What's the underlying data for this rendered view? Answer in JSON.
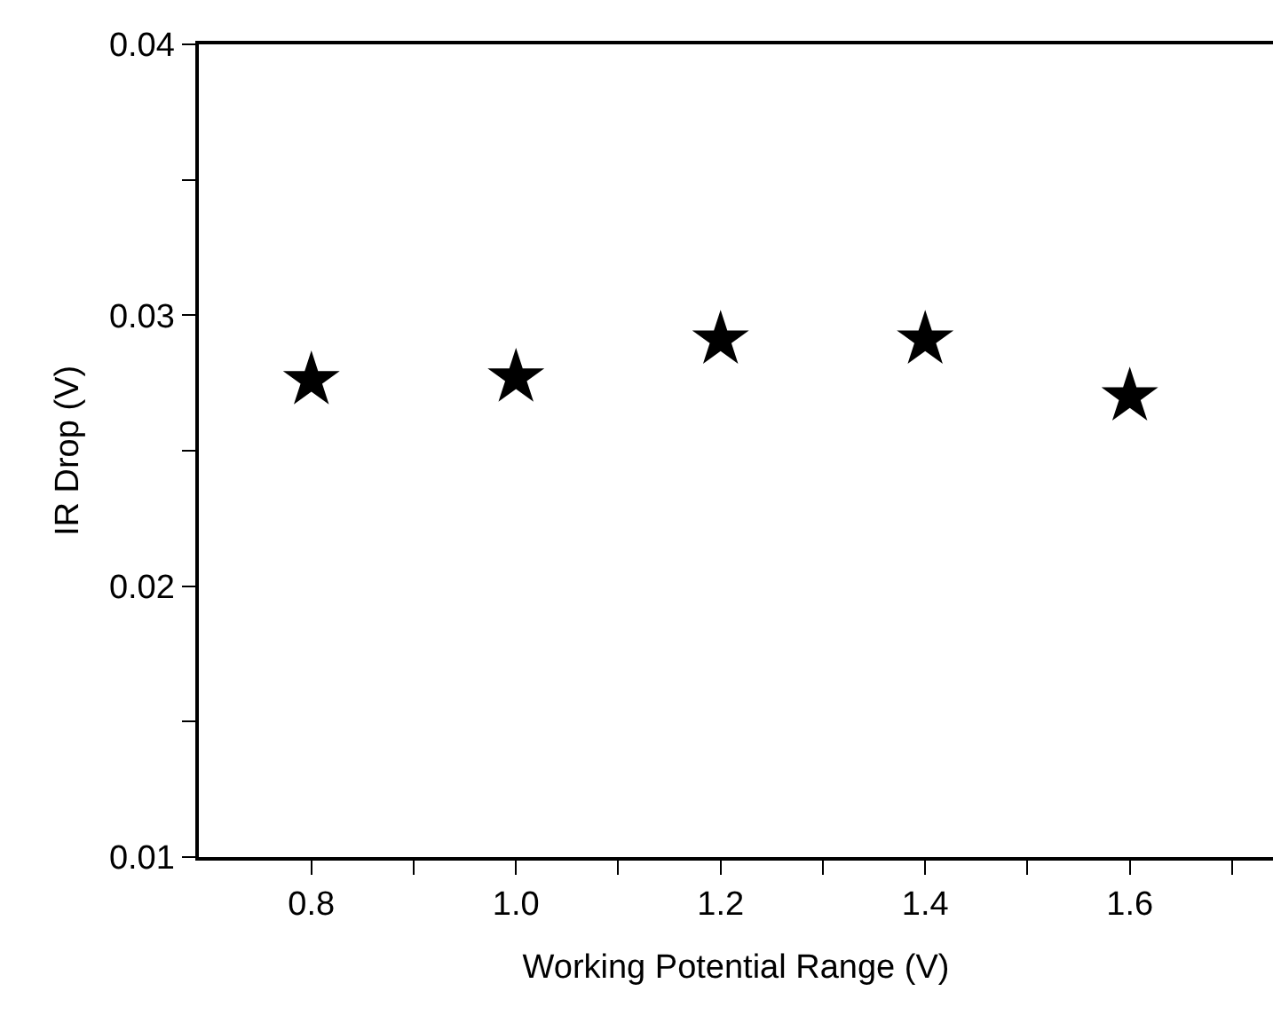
{
  "chart_data": {
    "type": "scatter",
    "xlabel": "Working Potential Range (V)",
    "ylabel": "IR Drop (V)",
    "x": [
      0.8,
      1.0,
      1.2,
      1.4,
      1.6
    ],
    "values": [
      0.0276,
      0.0277,
      0.0291,
      0.0291,
      0.027
    ],
    "color": "#000000",
    "marker": "star",
    "grid": false,
    "xlim": [
      0.69,
      1.74
    ],
    "ylim": [
      0.01,
      0.04
    ],
    "xticks": [
      {
        "value": 0.8,
        "label": "0.8"
      },
      {
        "value": 0.9,
        "label": null
      },
      {
        "value": 1.0,
        "label": "1.0"
      },
      {
        "value": 1.1,
        "label": null
      },
      {
        "value": 1.2,
        "label": "1.2"
      },
      {
        "value": 1.3,
        "label": null
      },
      {
        "value": 1.4,
        "label": "1.4"
      },
      {
        "value": 1.5,
        "label": null
      },
      {
        "value": 1.6,
        "label": "1.6"
      },
      {
        "value": 1.7,
        "label": null
      }
    ],
    "yticks": [
      0.01,
      {
        "value": 0.015,
        "label": null
      },
      0.02,
      {
        "value": 0.025,
        "label": null
      },
      0.03,
      {
        "value": 0.035,
        "label": null
      },
      0.04
    ]
  }
}
